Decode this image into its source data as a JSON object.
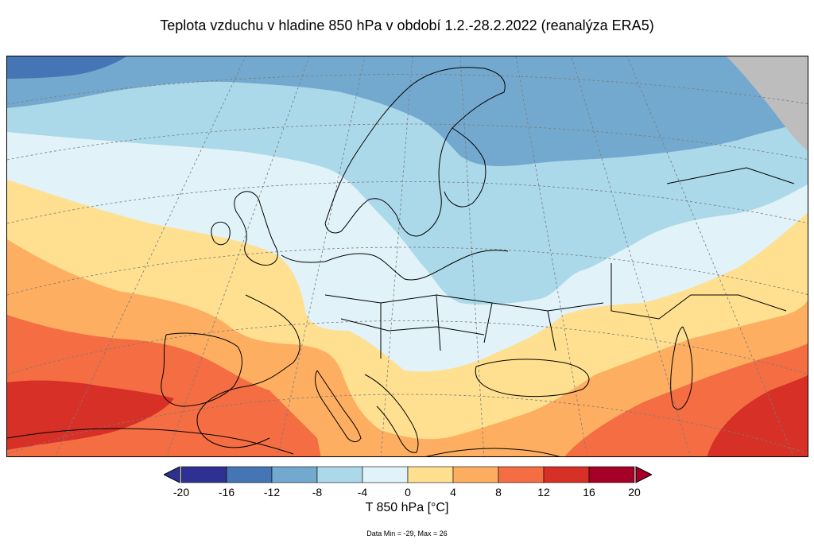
{
  "title": "Teplota vzduchu v hladine 850 hPa v období 1.2.-28.2.2022 (reanalýza ERA5)",
  "colorbar": {
    "label": "T 850 hPa [°C]",
    "ticks": [
      "-20",
      "-16",
      "-12",
      "-8",
      "-4",
      "0",
      "4",
      "8",
      "12",
      "16",
      "20"
    ],
    "colors": [
      "#2e3192",
      "#4575b4",
      "#74a9cf",
      "#abd9e9",
      "#e0f3f8",
      "#fee090",
      "#fdae61",
      "#f46d43",
      "#d73027",
      "#a50026"
    ],
    "under_color": "#2e3192",
    "over_color": "#a50026"
  },
  "data_info": "Data Min = -29, Max = 26",
  "map": {
    "land_mask_color": "#bdbdbd",
    "zones": [
      {
        "range": "-16 to -12",
        "color": "#4575b4"
      },
      {
        "range": "-12 to -8",
        "color": "#74a9cf"
      },
      {
        "range": "-8 to -4",
        "color": "#abd9e9"
      },
      {
        "range": "-4 to 0",
        "color": "#e0f3f8"
      },
      {
        "range": "0 to 4",
        "color": "#fee090"
      },
      {
        "range": "4 to 8",
        "color": "#fdae61"
      },
      {
        "range": "8 to 12",
        "color": "#f46d43"
      },
      {
        "range": "12 to 16",
        "color": "#d73027"
      }
    ]
  }
}
